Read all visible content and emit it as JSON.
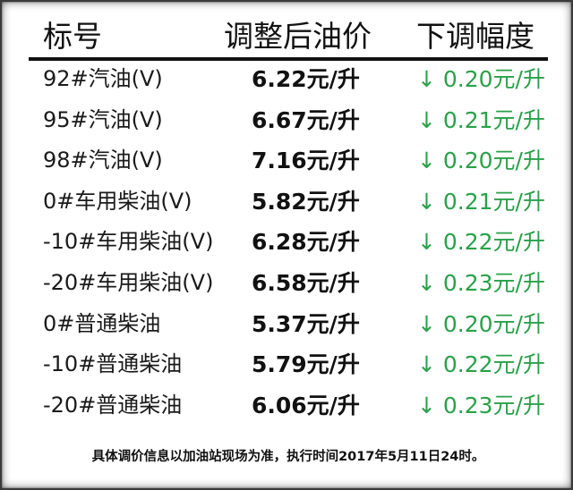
{
  "header": {
    "col_name": "标号",
    "col_price": "调整后油价",
    "col_drop": "下调幅度"
  },
  "rows": [
    {
      "name": "92#汽油(V)",
      "price": "6.22元/升",
      "drop": "↓ 0.20元/升"
    },
    {
      "name": "95#汽油(V)",
      "price": "6.67元/升",
      "drop": "↓ 0.21元/升"
    },
    {
      "name": "98#汽油(V)",
      "price": "7.16元/升",
      "drop": "↓ 0.20元/升"
    },
    {
      "name": "0#车用柴油(V)",
      "price": "5.82元/升",
      "drop": "↓ 0.21元/升"
    },
    {
      "name": "-10#车用柴油(V)",
      "price": "6.28元/升",
      "drop": "↓ 0.22元/升"
    },
    {
      "name": "-20#车用柴油(V)",
      "price": "6.58元/升",
      "drop": "↓ 0.23元/升"
    },
    {
      "name": "0#普通柴油",
      "price": "5.37元/升",
      "drop": "↓ 0.20元/升"
    },
    {
      "name": "-10#普通柴油",
      "price": "5.79元/升",
      "drop": "↓ 0.22元/升"
    },
    {
      "name": "-20#普通柴油",
      "price": "6.06元/升",
      "drop": "↓ 0.23元/升"
    }
  ],
  "footer": {
    "note": "具体调价信息以加油站现场为准，执行时间2017年5月11日24时。"
  },
  "colors": {
    "drop_green": "#2aa14a",
    "text": "#111111",
    "background": "#ffffff"
  }
}
